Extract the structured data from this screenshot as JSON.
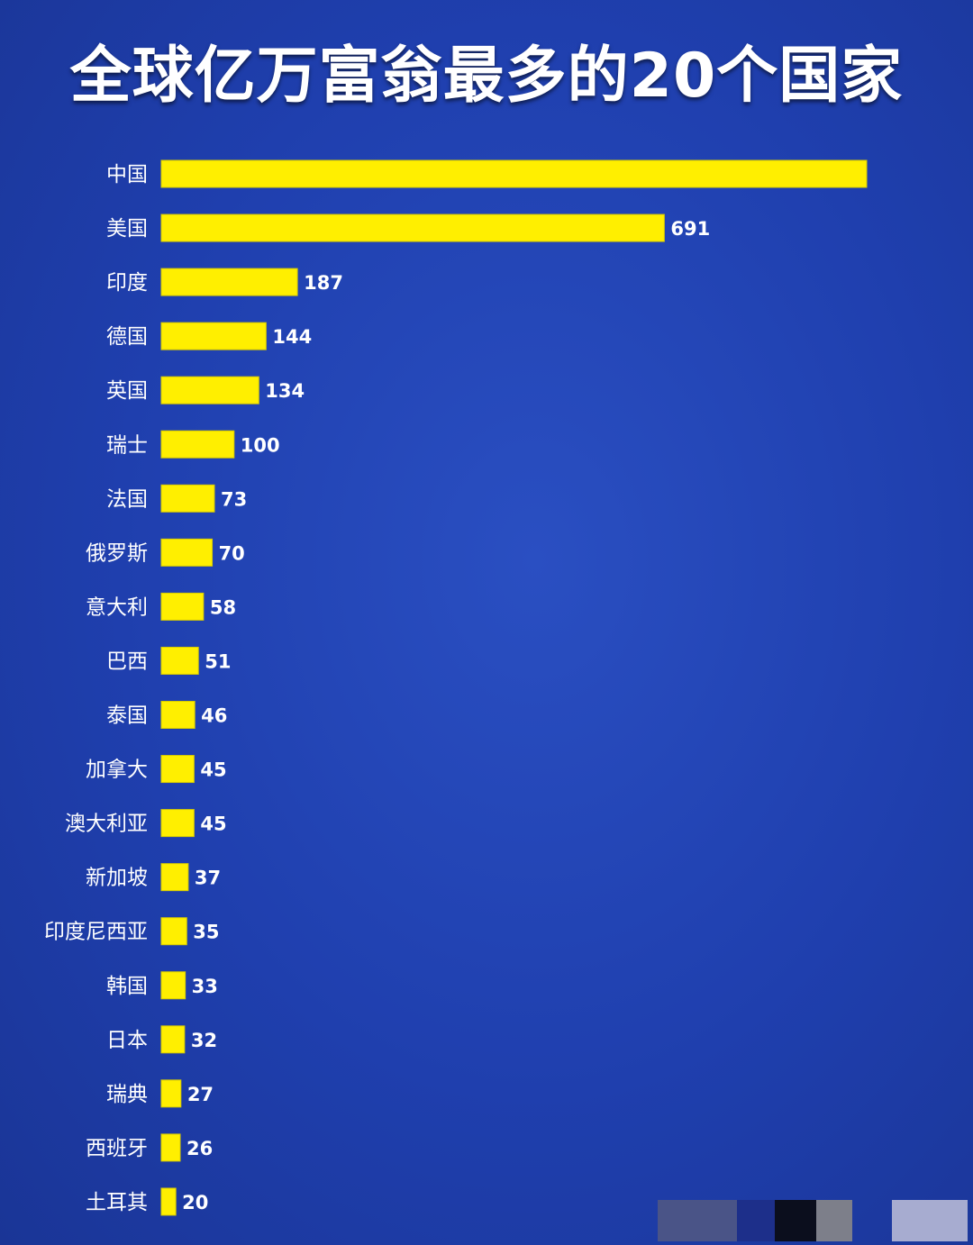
{
  "title": "全球亿万富翁最多的20个国家",
  "colors": {
    "background": "#1f3fae",
    "bar": "#ffef00",
    "text": "#ffffff"
  },
  "chart_data": {
    "type": "bar",
    "orientation": "horizontal",
    "title": "全球亿万富翁最多的20个国家",
    "categories": [
      "中国",
      "美国",
      "印度",
      "德国",
      "英国",
      "瑞士",
      "法国",
      "俄罗斯",
      "意大利",
      "巴西",
      "泰国",
      "加拿大",
      "澳大利亚",
      "新加坡",
      "印度尼西亚",
      "韩国",
      "日本",
      "瑞典",
      "西班牙",
      "土耳其"
    ],
    "values": [
      969,
      691,
      187,
      144,
      134,
      100,
      73,
      70,
      58,
      51,
      46,
      45,
      45,
      37,
      35,
      33,
      32,
      27,
      26,
      20
    ],
    "value_labels": [
      "",
      "691",
      "187",
      "144",
      "134",
      "100",
      "73",
      "70",
      "58",
      "51",
      "46",
      "45",
      "45",
      "37",
      "35",
      "33",
      "32",
      "27",
      "26",
      "20"
    ],
    "xlim": [
      0,
      969
    ],
    "grid": false,
    "legend": "none"
  }
}
